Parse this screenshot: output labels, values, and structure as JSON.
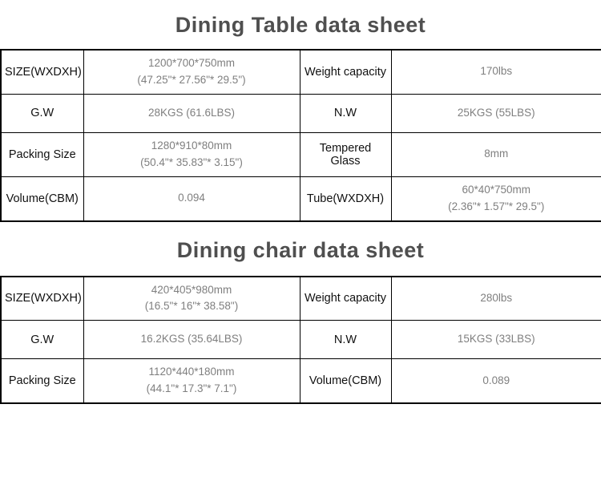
{
  "titles": {
    "table_sheet": "Dining Table data sheet",
    "chair_sheet": "Dining chair data sheet"
  },
  "dining_table": {
    "rows": [
      {
        "c1": "SIZE(WXDXH)",
        "c2": "1200*700*750mm\n(47.25\"* 27.56\"* 29.5\")",
        "c3": "Weight capacity",
        "c4": "170lbs"
      },
      {
        "c1": "G.W",
        "c2": "28KGS (61.6LBS)",
        "c3": "N.W",
        "c4": "25KGS (55LBS)"
      },
      {
        "c1": "Packing Size",
        "c2": "1280*910*80mm\n(50.4\"* 35.83\"* 3.15\")",
        "c3": "Tempered Glass",
        "c4": "8mm"
      },
      {
        "c1": "Volume(CBM)",
        "c2": "0.094",
        "c3": "Tube(WXDXH)",
        "c4": "60*40*750mm\n(2.36\"* 1.57\"* 29.5\")"
      }
    ]
  },
  "dining_chair": {
    "rows": [
      {
        "c1": "SIZE(WXDXH)",
        "c2": "420*405*980mm\n(16.5\"* 16\"* 38.58\")",
        "c3": "Weight capacity",
        "c4": "280lbs"
      },
      {
        "c1": "G.W",
        "c2": "16.2KGS (35.64LBS)",
        "c3": "N.W",
        "c4": "15KGS (33LBS)"
      },
      {
        "c1": "Packing Size",
        "c2": "1120*440*180mm\n(44.1\"* 17.3\"* 7.1\")",
        "c3": "Volume(CBM)",
        "c4": "0.089"
      }
    ]
  }
}
